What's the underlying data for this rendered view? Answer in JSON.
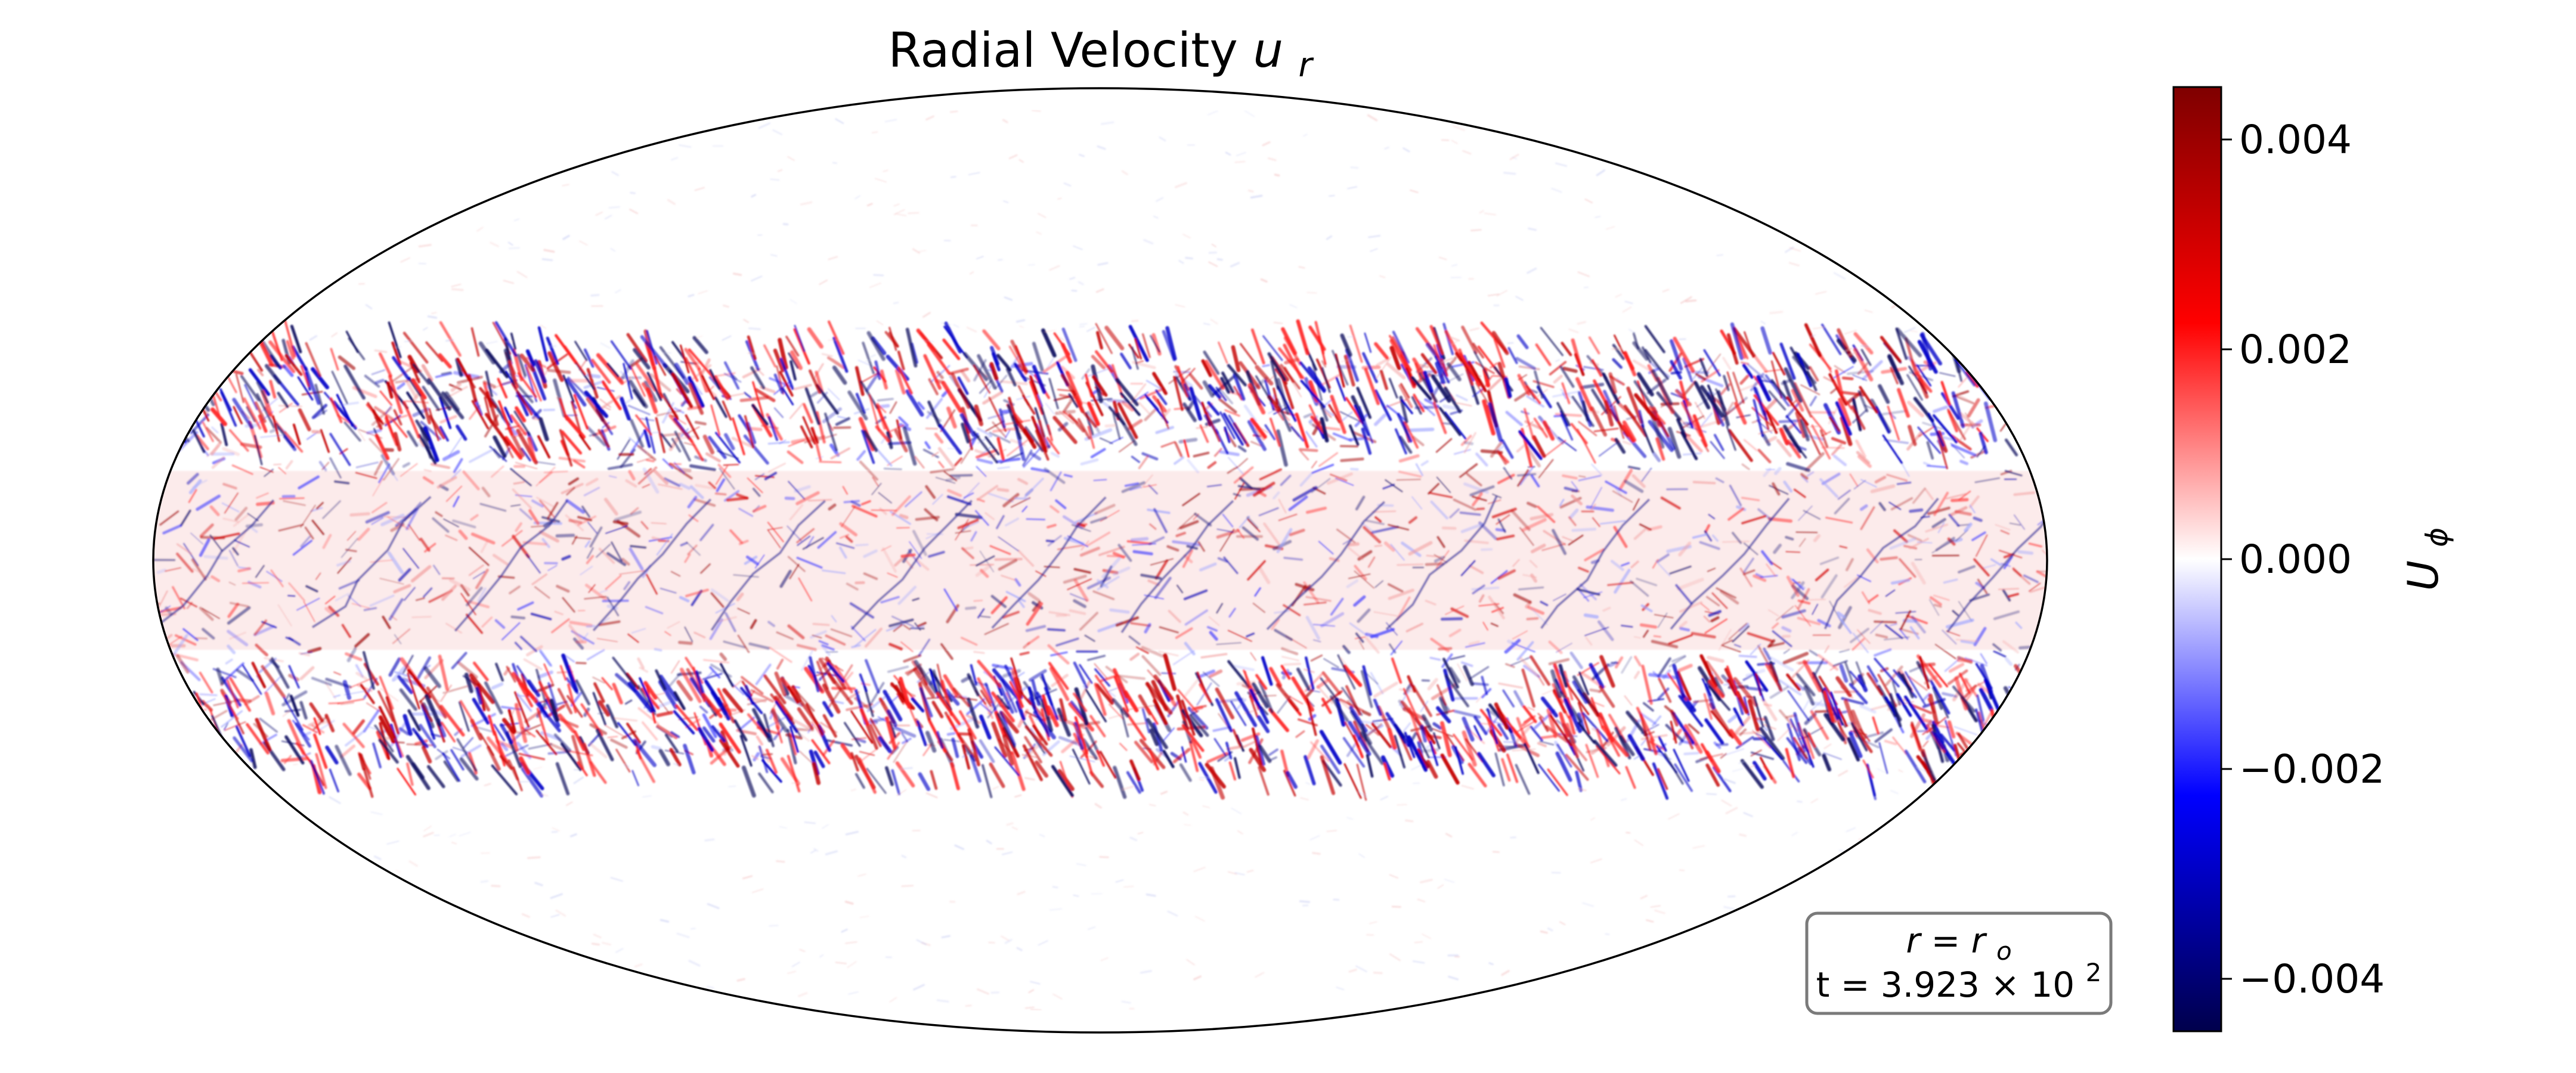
{
  "chart_data": {
    "type": "heatmap",
    "projection": "mollweide",
    "title_text": "Radial Velocity",
    "title_math": "u",
    "title_sub": "r",
    "field": "radial velocity on a spherical surface (turbulent fine-scale structure)",
    "colormap": "seismic",
    "colors": {
      "min": "#00004c",
      "mid": "#ffffff",
      "max": "#7f0000"
    },
    "colorbar": {
      "label_math": "U",
      "label_sub": "ϕ",
      "vmin": -0.0045,
      "vmax": 0.0045,
      "ticks": [
        0.004,
        0.002,
        0.0,
        -0.002,
        -0.004
      ],
      "tick_labels": [
        "0.004",
        "0.002",
        "0.000",
        "−0.002",
        "−0.004"
      ]
    },
    "bands": {
      "active_band_latitude_deg": [
        -38,
        38
      ],
      "equator_bias": "slightly positive (light red) with blue streaks",
      "band_edges": "strong alternating red/blue streaks"
    },
    "annotation": {
      "line1_text": "r = r",
      "line1_sub": "o",
      "line2_text": "t = 3.923 × 10",
      "line2_sup": "2"
    }
  }
}
